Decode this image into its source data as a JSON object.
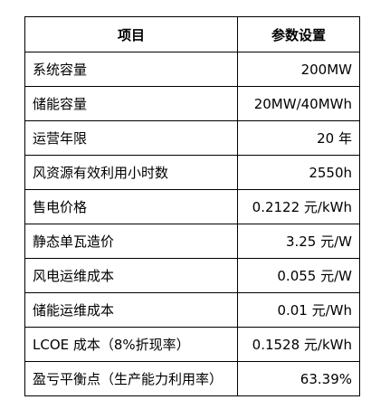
{
  "table": {
    "header": [
      "项目",
      "参数设置"
    ],
    "rows": [
      [
        "系统容量",
        "200MW"
      ],
      [
        "储能容量",
        "20MW/40MWh"
      ],
      [
        "运营年限",
        "20 年"
      ],
      [
        "风资源有效利用小时数",
        "2550h"
      ],
      [
        "售电价格",
        "0.2122 元/kWh"
      ],
      [
        "静态单瓦造价",
        "3.25 元/W"
      ],
      [
        "风电运维成本",
        "0.055 元/W"
      ],
      [
        "储能运维成本",
        "0.01 元/Wh"
      ],
      [
        "LCOE 成本（8%折现率）",
        "0.1528 元/kWh"
      ],
      [
        "盈亏平衡点（生产能力利用率）",
        "63.39%"
      ]
    ]
  }
}
